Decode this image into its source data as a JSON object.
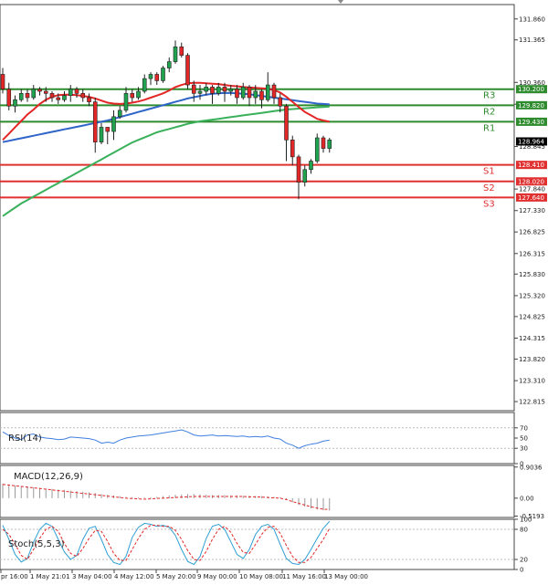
{
  "chart_data": {
    "type": "candlestick",
    "panels": {
      "price": {
        "ylim": [
          122.6,
          132.2
        ],
        "y_ticks": [
          "131.860",
          "131.365",
          "130.360",
          "129.845",
          "128.845",
          "127.840",
          "127.330",
          "126.825",
          "126.315",
          "125.830",
          "125.320",
          "124.825",
          "124.315",
          "123.820",
          "123.310",
          "122.815"
        ],
        "current_price": "128.964",
        "levels": [
          {
            "name": "R3",
            "value": 130.2,
            "tag": "130.200",
            "color": "#2e8b2e"
          },
          {
            "name": "R2",
            "value": 129.82,
            "tag": "129.820",
            "color": "#2e8b2e"
          },
          {
            "name": "R1",
            "value": 129.43,
            "tag": "129.430",
            "color": "#2e8b2e"
          },
          {
            "name": "S1",
            "value": 128.41,
            "tag": "128.410",
            "color": "#e03030"
          },
          {
            "name": "S2",
            "value": 128.02,
            "tag": "128.020",
            "color": "#e03030"
          },
          {
            "name": "S3",
            "value": 127.64,
            "tag": "127.640",
            "color": "#e03030"
          }
        ],
        "candles": [
          [
            130.55,
            130.2,
            130.1,
            130.7
          ],
          [
            130.2,
            129.8,
            129.7,
            130.35
          ],
          [
            129.8,
            129.95,
            129.65,
            130.05
          ],
          [
            129.95,
            130.1,
            129.9,
            130.2
          ],
          [
            130.1,
            130.0,
            129.9,
            130.2
          ],
          [
            130.0,
            130.2,
            129.95,
            130.3
          ],
          [
            130.2,
            130.15,
            130.05,
            130.25
          ],
          [
            130.15,
            130.1,
            129.9,
            130.25
          ],
          [
            130.1,
            130.0,
            129.9,
            130.15
          ],
          [
            130.0,
            129.95,
            129.85,
            130.1
          ],
          [
            129.95,
            130.05,
            129.9,
            130.15
          ],
          [
            130.05,
            130.2,
            129.9,
            130.3
          ],
          [
            130.2,
            130.1,
            130.0,
            130.25
          ],
          [
            130.1,
            130.0,
            129.9,
            130.2
          ],
          [
            130.0,
            129.9,
            129.8,
            130.1
          ],
          [
            129.9,
            128.95,
            128.7,
            130.0
          ],
          [
            128.95,
            129.3,
            128.9,
            129.4
          ],
          [
            129.3,
            129.2,
            128.9,
            129.3
          ],
          [
            129.2,
            129.55,
            129.0,
            129.7
          ],
          [
            129.55,
            129.7,
            129.5,
            129.8
          ],
          [
            129.7,
            130.1,
            129.65,
            130.25
          ],
          [
            130.1,
            130.0,
            129.9,
            130.2
          ],
          [
            130.0,
            130.15,
            129.95,
            130.25
          ],
          [
            130.15,
            130.45,
            130.1,
            130.55
          ],
          [
            130.45,
            130.55,
            130.3,
            130.6
          ],
          [
            130.55,
            130.4,
            130.3,
            130.6
          ],
          [
            130.4,
            130.7,
            130.35,
            130.75
          ],
          [
            130.7,
            130.85,
            130.6,
            130.95
          ],
          [
            130.85,
            131.2,
            130.8,
            131.35
          ],
          [
            131.2,
            131.0,
            130.95,
            131.3
          ],
          [
            131.0,
            130.3,
            130.2,
            131.05
          ],
          [
            130.3,
            130.1,
            129.9,
            130.4
          ],
          [
            130.1,
            130.15,
            129.95,
            130.3
          ],
          [
            130.15,
            130.25,
            130.05,
            130.35
          ],
          [
            130.25,
            130.1,
            129.85,
            130.3
          ],
          [
            130.1,
            130.25,
            130.05,
            130.35
          ],
          [
            130.25,
            130.15,
            129.9,
            130.35
          ],
          [
            130.15,
            130.2,
            130.05,
            130.3
          ],
          [
            130.2,
            130.0,
            129.85,
            130.3
          ],
          [
            130.0,
            130.25,
            129.95,
            130.35
          ],
          [
            130.25,
            130.0,
            129.8,
            130.3
          ],
          [
            130.0,
            130.15,
            129.85,
            130.3
          ],
          [
            130.15,
            129.95,
            129.75,
            130.2
          ],
          [
            129.95,
            130.3,
            129.9,
            130.6
          ],
          [
            130.3,
            130.0,
            129.85,
            130.35
          ],
          [
            130.0,
            129.8,
            129.65,
            130.1
          ],
          [
            129.8,
            129.0,
            128.5,
            129.85
          ],
          [
            129.0,
            128.6,
            128.4,
            129.1
          ],
          [
            128.6,
            128.0,
            127.6,
            128.65
          ],
          [
            128.0,
            128.3,
            127.9,
            128.4
          ],
          [
            128.3,
            128.5,
            128.2,
            128.55
          ],
          [
            128.5,
            129.05,
            128.45,
            129.15
          ],
          [
            129.05,
            128.8,
            128.7,
            129.1
          ],
          [
            128.8,
            129.0,
            128.7,
            129.05
          ]
        ],
        "ma_red": [
          129.0,
          129.15,
          129.3,
          129.45,
          129.6,
          129.72,
          129.85,
          129.95,
          130.02,
          130.06,
          130.07,
          130.07,
          130.06,
          130.04,
          130.02,
          129.98,
          129.93,
          129.88,
          129.86,
          129.85,
          129.86,
          129.88,
          129.91,
          129.95,
          130.0,
          130.05,
          130.1,
          130.17,
          130.25,
          130.3,
          130.34,
          130.35,
          130.35,
          130.34,
          130.33,
          130.32,
          130.3,
          130.28,
          130.27,
          130.25,
          130.24,
          130.23,
          130.22,
          130.21,
          130.18,
          130.12,
          130.02,
          129.9,
          129.78,
          129.66,
          129.58,
          129.5,
          129.46,
          129.43
        ],
        "ma_blue": [
          128.95,
          128.98,
          129.01,
          129.04,
          129.07,
          129.1,
          129.13,
          129.16,
          129.19,
          129.22,
          129.25,
          129.28,
          129.31,
          129.34,
          129.37,
          129.4,
          129.43,
          129.46,
          129.5,
          129.54,
          129.58,
          129.62,
          129.66,
          129.7,
          129.74,
          129.78,
          129.82,
          129.86,
          129.9,
          129.94,
          129.98,
          130.01,
          130.04,
          130.07,
          130.09,
          130.1,
          130.11,
          130.11,
          130.1,
          130.09,
          130.08,
          130.06,
          130.04,
          130.02,
          130.0,
          129.98,
          129.96,
          129.94,
          129.92,
          129.9,
          129.88,
          129.86,
          129.85,
          129.84
        ],
        "ma_green": [
          127.2,
          127.3,
          127.4,
          127.5,
          127.58,
          127.66,
          127.74,
          127.82,
          127.9,
          127.98,
          128.06,
          128.14,
          128.22,
          128.3,
          128.38,
          128.46,
          128.54,
          128.62,
          128.7,
          128.78,
          128.86,
          128.94,
          129.0,
          129.06,
          129.12,
          129.18,
          129.22,
          129.26,
          129.3,
          129.34,
          129.38,
          129.41,
          129.44,
          129.46,
          129.48,
          129.5,
          129.52,
          129.54,
          129.56,
          129.58,
          129.6,
          129.62,
          129.64,
          129.66,
          129.68,
          129.7,
          129.72,
          129.73,
          129.74,
          129.75,
          129.76,
          129.77,
          129.78,
          129.79
        ]
      },
      "rsi": {
        "label": "RSI(14)",
        "ylim": [
          0,
          100
        ],
        "y_ticks": [
          "70",
          "50",
          "30",
          "0"
        ],
        "values": [
          62,
          55,
          50,
          47,
          56,
          58,
          52,
          50,
          49,
          47,
          48,
          52,
          51,
          50,
          49,
          46,
          40,
          42,
          40,
          46,
          50,
          52,
          54,
          55,
          56,
          58,
          60,
          62,
          64,
          66,
          62,
          56,
          54,
          55,
          56,
          54,
          55,
          54,
          53,
          54,
          52,
          53,
          52,
          54,
          50,
          48,
          40,
          36,
          30,
          35,
          38,
          40,
          44,
          46
        ]
      },
      "macd": {
        "label": "MACD(12,26,9)",
        "ylim": [
          -0.56,
          0.95
        ],
        "y_ticks": [
          "0.9036",
          "0.00",
          "-0.5193"
        ],
        "hist": [
          0.42,
          0.4,
          0.37,
          0.35,
          0.34,
          0.32,
          0.3,
          0.28,
          0.27,
          0.25,
          0.24,
          0.22,
          0.2,
          0.19,
          0.17,
          0.15,
          0.12,
          0.1,
          0.08,
          0.06,
          0.04,
          0.03,
          0.02,
          0.02,
          0.03,
          0.04,
          0.06,
          0.08,
          0.1,
          0.11,
          0.12,
          0.12,
          0.11,
          0.1,
          0.09,
          0.09,
          0.09,
          0.08,
          0.08,
          0.07,
          0.07,
          0.06,
          0.06,
          0.05,
          0.04,
          0.03,
          -0.05,
          -0.12,
          -0.2,
          -0.25,
          -0.3,
          -0.33,
          -0.35,
          -0.36
        ],
        "signal": [
          0.4,
          0.38,
          0.36,
          0.34,
          0.32,
          0.3,
          0.28,
          0.26,
          0.24,
          0.22,
          0.2,
          0.18,
          0.16,
          0.14,
          0.12,
          0.1,
          0.08,
          0.06,
          0.04,
          0.02,
          0.0,
          -0.01,
          -0.02,
          -0.03,
          -0.02,
          -0.01,
          0.0,
          0.01,
          0.02,
          0.03,
          0.04,
          0.05,
          0.05,
          0.05,
          0.05,
          0.05,
          0.05,
          0.05,
          0.05,
          0.05,
          0.04,
          0.04,
          0.03,
          0.02,
          0.01,
          0.0,
          -0.04,
          -0.1,
          -0.15,
          -0.2,
          -0.25,
          -0.29,
          -0.32,
          -0.33
        ]
      },
      "stoch": {
        "label": "Stoch(5,5,3)",
        "ylim": [
          0,
          100
        ],
        "y_ticks": [
          "100",
          "80",
          "20",
          "0"
        ],
        "k": [
          88,
          60,
          30,
          15,
          22,
          55,
          80,
          92,
          86,
          60,
          35,
          20,
          28,
          60,
          82,
          86,
          60,
          30,
          14,
          10,
          26,
          64,
          84,
          92,
          90,
          86,
          88,
          84,
          68,
          40,
          16,
          10,
          26,
          62,
          86,
          90,
          80,
          55,
          30,
          22,
          40,
          70,
          86,
          90,
          80,
          50,
          22,
          12,
          10,
          20,
          40,
          62,
          82,
          96
        ],
        "d": [
          80,
          70,
          50,
          28,
          20,
          40,
          62,
          80,
          86,
          76,
          52,
          32,
          26,
          42,
          62,
          78,
          76,
          56,
          32,
          18,
          18,
          40,
          62,
          80,
          88,
          88,
          86,
          86,
          78,
          60,
          38,
          20,
          18,
          36,
          60,
          80,
          86,
          74,
          52,
          34,
          32,
          50,
          70,
          84,
          86,
          72,
          48,
          26,
          14,
          14,
          24,
          42,
          60,
          82
        ]
      }
    },
    "x_labels": [
      "pr 16:00",
      "1 May 21:01",
      "3 May 04:00",
      "4 May 12:00",
      "5 May 20:00",
      "9 May 00:00",
      "10 May 08:00",
      "11 May 16:00",
      "13 May 00:00"
    ],
    "colors": {
      "up": "#21a24f",
      "down": "#e32626",
      "ma_red": "#e32626",
      "ma_blue": "#2f64c8",
      "ma_green": "#39b05a",
      "rsi": "#3f7fe0",
      "macd_signal": "#e32626",
      "stoch_k": "#2f9fd4",
      "stoch_d": "#e32626"
    }
  }
}
